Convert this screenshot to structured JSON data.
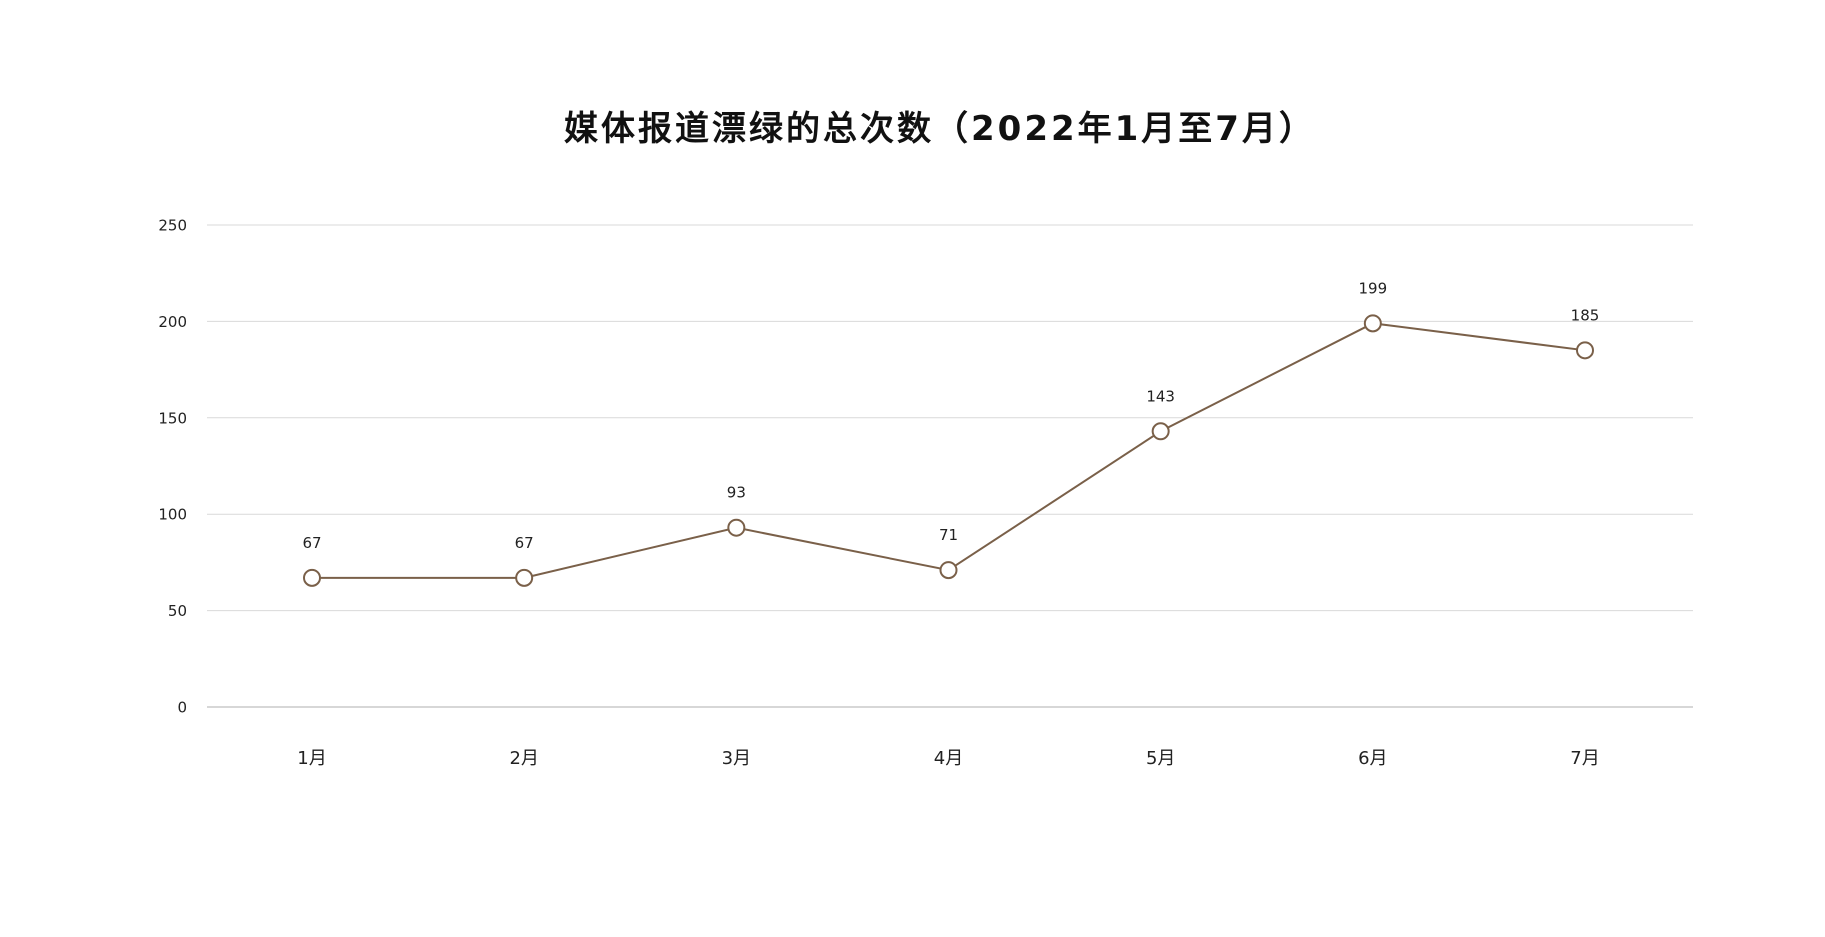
{
  "chart_data": {
    "type": "line",
    "title": "媒体报道漂绿的总次数（2022年1月至7月）",
    "categories": [
      "1月",
      "2月",
      "3月",
      "4月",
      "5月",
      "6月",
      "7月"
    ],
    "series": [
      {
        "values": [
          67,
          67,
          93,
          71,
          143,
          199,
          185
        ]
      }
    ],
    "ylim": [
      0,
      250
    ],
    "yticks": [
      0,
      50,
      100,
      150,
      200,
      250
    ],
    "grid": true,
    "legend": "none",
    "colors": {
      "line": "#7a6049",
      "marker_fill": "#ffffff",
      "grid": "#d9d9d9",
      "text": "#222222"
    }
  }
}
